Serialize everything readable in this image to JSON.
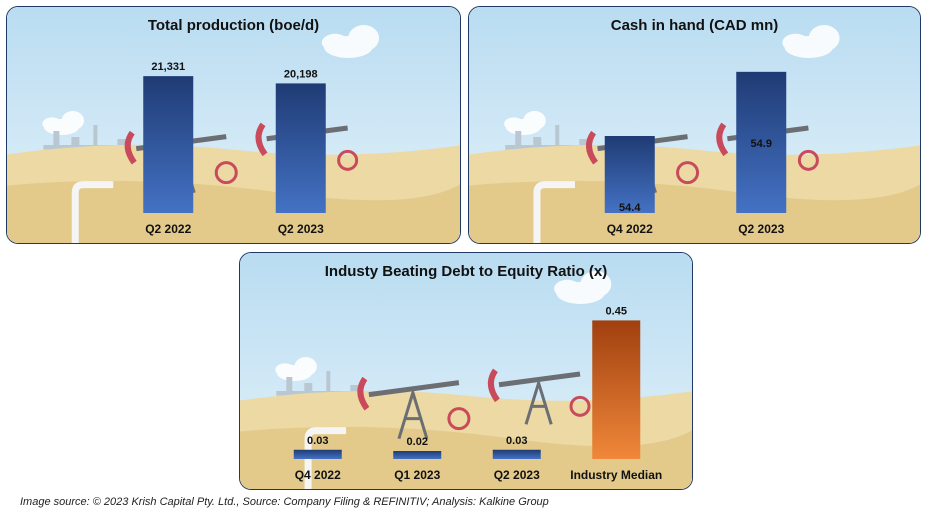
{
  "charts": [
    {
      "id": "p1",
      "title": "Total production (boe/d)",
      "type": "bar",
      "categories": [
        "Q2 2022",
        "Q2 2023"
      ],
      "values": [
        21331,
        20198
      ],
      "labels": [
        "21,331",
        "20,198"
      ],
      "label_position": "above",
      "ymax": 24000,
      "color": "blue"
    },
    {
      "id": "p2",
      "title": "Cash in hand (CAD mn)",
      "type": "bar",
      "categories": [
        "Q4 2022",
        "Q2 2023"
      ],
      "values": [
        54.4,
        54.9
      ],
      "labels": [
        "54.4",
        "54.9"
      ],
      "label_position": "inside",
      "ymin": 53.8,
      "ymax": 55.0,
      "color": "blue"
    },
    {
      "id": "p3",
      "title": "Industy Beating Debt to Equity Ratio (x)",
      "type": "bar",
      "categories": [
        "Q4 2022",
        "Q1 2023",
        "Q2 2023",
        "Industry Median"
      ],
      "values": [
        0.03,
        0.02,
        0.03,
        0.45
      ],
      "labels": [
        "0.03",
        "0.02",
        "0.03",
        "0.45"
      ],
      "label_position": "above",
      "ymax": 0.5,
      "bar_colors": [
        "blue",
        "blue",
        "blue",
        "orange"
      ]
    }
  ],
  "chart_data": [
    {
      "type": "bar",
      "title": "Total production (boe/d)",
      "categories": [
        "Q2 2022",
        "Q2 2023"
      ],
      "values": [
        21331,
        20198
      ]
    },
    {
      "type": "bar",
      "title": "Cash in hand (CAD mn)",
      "categories": [
        "Q4 2022",
        "Q2 2023"
      ],
      "values": [
        54.4,
        54.9
      ]
    },
    {
      "type": "bar",
      "title": "Industy Beating Debt to Equity Ratio (x)",
      "categories": [
        "Q4 2022",
        "Q1 2023",
        "Q2 2023",
        "Industry Median"
      ],
      "values": [
        0.03,
        0.02,
        0.03,
        0.45
      ]
    }
  ],
  "source": "Image source: © 2023 Krish Capital Pty. Ltd., Source: Company Filing & REFINITIV; Analysis: Kalkine Group"
}
